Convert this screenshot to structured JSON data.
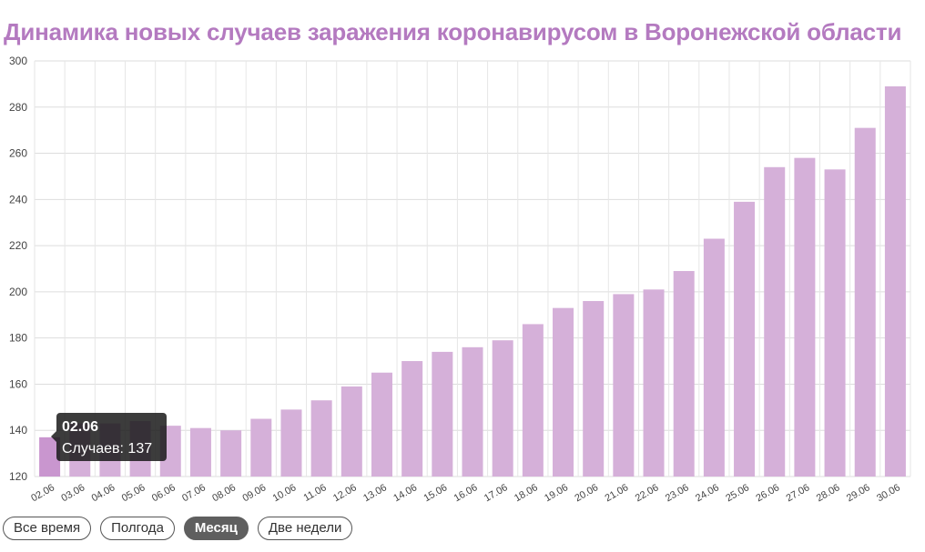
{
  "title": "Динамика новых случаев заражения коронавирусом в Воронежской области",
  "buttons": [
    {
      "label": "Все время",
      "active": false
    },
    {
      "label": "Полгода",
      "active": false
    },
    {
      "label": "Месяц",
      "active": true
    },
    {
      "label": "Две недели",
      "active": false
    }
  ],
  "tooltip": {
    "title": "02.06",
    "body": "Случаев: 137"
  },
  "colors": {
    "bar": "#d5b0d9",
    "bar_highlight": "#c996cf",
    "title": "#b47ac0"
  },
  "chart_data": {
    "type": "bar",
    "title": "Динамика новых случаев заражения коронавирусом в Воронежской области",
    "xlabel": "",
    "ylabel": "",
    "ylim": [
      120,
      300
    ],
    "yticks": [
      120,
      140,
      160,
      180,
      200,
      220,
      240,
      260,
      280,
      300
    ],
    "grid": true,
    "categories": [
      "02.06",
      "03.06",
      "04.06",
      "05.06",
      "06.06",
      "07.06",
      "08.06",
      "09.06",
      "10.06",
      "11.06",
      "12.06",
      "13.06",
      "14.06",
      "15.06",
      "16.06",
      "17.06",
      "18.06",
      "19.06",
      "20.06",
      "21.06",
      "22.06",
      "23.06",
      "24.06",
      "25.06",
      "26.06",
      "27.06",
      "28.06",
      "29.06",
      "30.06"
    ],
    "series": [
      {
        "values": [
          137,
          143,
          143,
          144,
          142,
          141,
          140,
          145,
          149,
          153,
          159,
          165,
          170,
          174,
          176,
          179,
          186,
          193,
          196,
          199,
          201,
          209,
          223,
          239,
          254,
          258,
          253,
          271,
          289
        ]
      }
    ]
  }
}
